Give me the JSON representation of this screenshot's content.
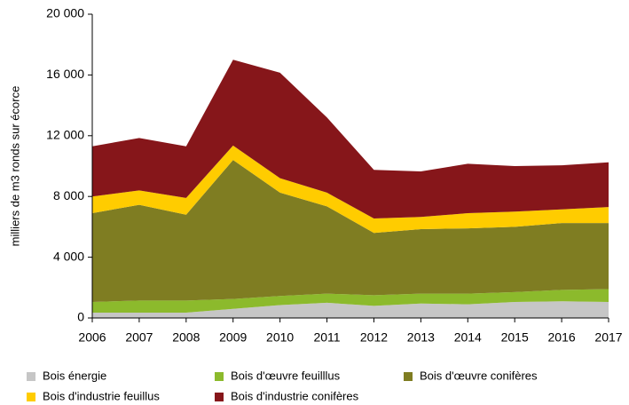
{
  "chart_data": {
    "type": "stacked_area",
    "y_label": "milliers de m3 ronds sur écorce",
    "x": [
      2006,
      2007,
      2008,
      2009,
      2010,
      2011,
      2012,
      2013,
      2014,
      2015,
      2016,
      2017
    ],
    "xlim": [
      2006,
      2017
    ],
    "ylim": [
      0,
      20000
    ],
    "yticks": [
      0,
      {
        "value": 4000,
        "label": "4 000"
      },
      {
        "value": 8000,
        "label": "8 000"
      },
      {
        "value": 12000,
        "label": "12 000"
      },
      {
        "value": 16000,
        "label": "16 000"
      },
      {
        "value": 20000,
        "label": "20 000"
      }
    ],
    "series": [
      {
        "name": "Bois énergie",
        "color": "#c6c6c6",
        "values": [
          350,
          350,
          350,
          600,
          850,
          1000,
          800,
          950,
          900,
          1050,
          1100,
          1050
        ]
      },
      {
        "name": "Bois d'œuvre feuilllus",
        "color": "#8cba2c",
        "values": [
          700,
          800,
          800,
          650,
          600,
          600,
          700,
          650,
          700,
          650,
          750,
          850
        ]
      },
      {
        "name": "Bois d'œuvre conifères",
        "color": "#7f7d22",
        "values": [
          5850,
          6300,
          5650,
          9150,
          6800,
          5750,
          4100,
          4250,
          4300,
          4300,
          4400,
          4350
        ]
      },
      {
        "name": "Bois d'industrie feuillus",
        "color": "#ffcc00",
        "values": [
          1100,
          950,
          1100,
          950,
          950,
          900,
          950,
          800,
          1000,
          1000,
          900,
          1050
        ]
      },
      {
        "name": "Bois d'industrie conifères",
        "color": "#86161a",
        "values": [
          3300,
          3450,
          3400,
          5650,
          6950,
          4950,
          3200,
          3000,
          3250,
          3000,
          2900,
          2950
        ]
      }
    ]
  }
}
